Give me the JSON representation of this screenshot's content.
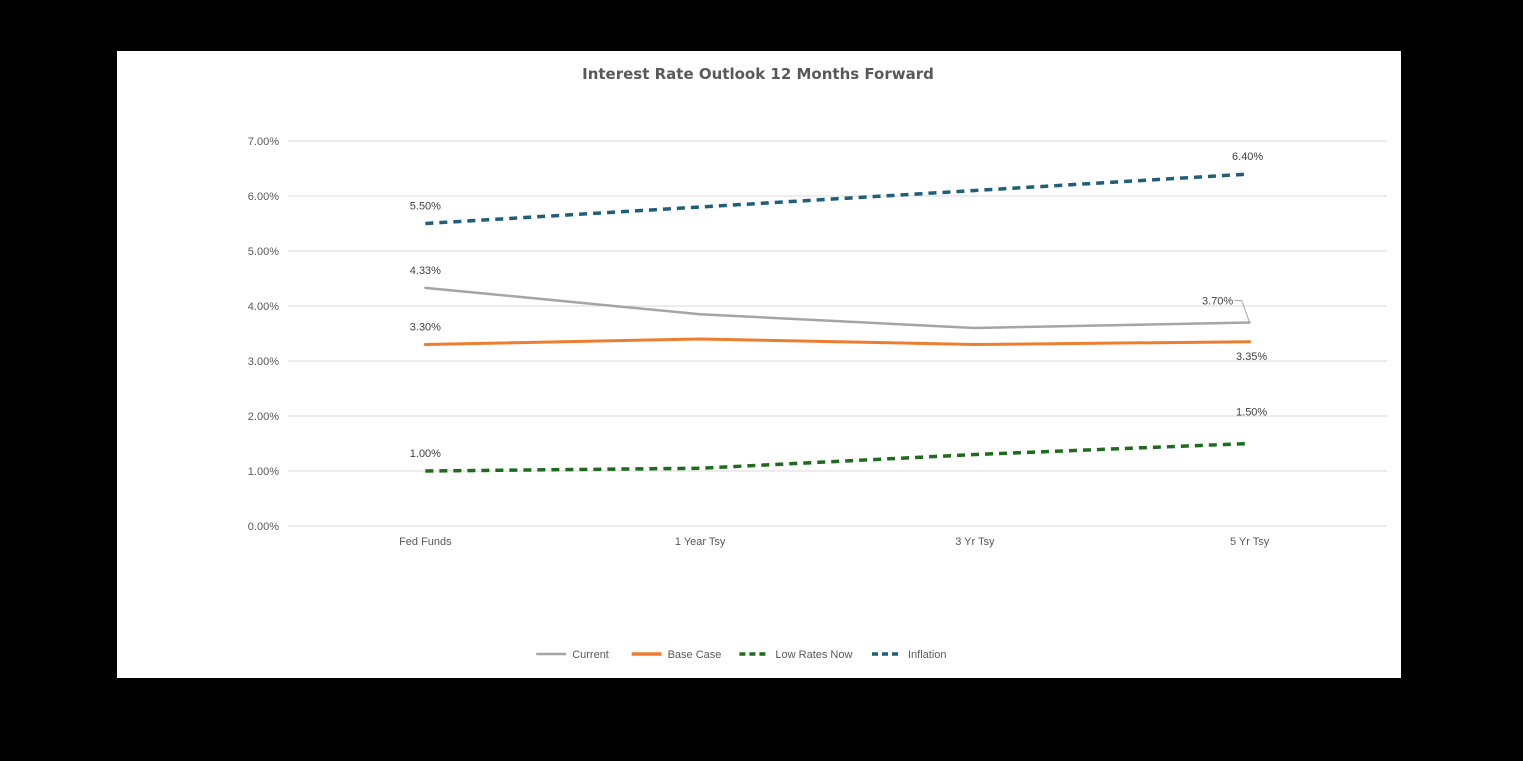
{
  "chart_data": {
    "type": "line",
    "title": "Interest Rate Outlook 12 Months Forward",
    "categories": [
      "Fed Funds",
      "1 Year Tsy",
      "3 Yr Tsy",
      "5 Yr Tsy"
    ],
    "ylim": [
      0,
      7
    ],
    "y_ticks": [
      "0.00%",
      "1.00%",
      "2.00%",
      "3.00%",
      "4.00%",
      "5.00%",
      "6.00%",
      "7.00%"
    ],
    "grid": true,
    "legend_position": "bottom",
    "series": [
      {
        "name": "Current",
        "values": [
          4.33,
          3.85,
          3.6,
          3.7
        ],
        "color": "#a5a5a5",
        "dash": "solid",
        "labels": [
          "4.33%",
          "",
          "",
          "3.70%"
        ]
      },
      {
        "name": "Base Case",
        "values": [
          3.3,
          3.4,
          3.3,
          3.35
        ],
        "color": "#ed7d31",
        "dash": "solid",
        "labels": [
          "3.30%",
          "",
          "",
          "3.35%"
        ]
      },
      {
        "name": "Low Rates Now",
        "values": [
          1.0,
          1.05,
          1.3,
          1.5
        ],
        "color": "#1e6b1e",
        "dash": "dashed",
        "labels": [
          "1.00%",
          "",
          "",
          "1.50%"
        ]
      },
      {
        "name": "Inflation",
        "values": [
          5.5,
          5.8,
          6.1,
          6.4
        ],
        "color": "#1f5f7a",
        "dash": "dashed",
        "labels": [
          "5.50%",
          "",
          "",
          "6.40%"
        ]
      }
    ]
  }
}
